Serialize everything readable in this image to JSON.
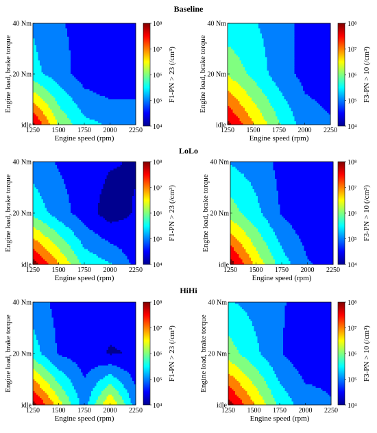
{
  "sections": [
    {
      "title": "Baseline"
    },
    {
      "title": "LoLo"
    },
    {
      "title": "HiHi"
    }
  ],
  "colors": {
    "colormap": [
      "#00008f",
      "#0000ff",
      "#0080ff",
      "#00ffff",
      "#80ff80",
      "#ffff00",
      "#ff8000",
      "#ff0000",
      "#800000"
    ]
  },
  "chart_data": [
    {
      "type": "heatmap",
      "section": "Baseline",
      "x": [
        1250,
        1500,
        1750,
        2000,
        2250
      ],
      "y": [
        "idle",
        "20 Nm",
        "40 Nm"
      ],
      "x_ticks": [
        "1250",
        "1500",
        "1750",
        "2000",
        "2250"
      ],
      "y_ticks": [
        "idle",
        "20 Nm",
        "40 Nm"
      ],
      "xlabel": "Engine speed (rpm)",
      "ylabel": "Engine load, brake torque",
      "colorbar_label": "F1-PN > 23 (/cm³)",
      "colorbar_ticks": [
        "10⁴",
        "10⁵",
        "10⁶",
        "10⁷",
        "10⁸"
      ],
      "colorbar_range_log10": [
        4,
        8
      ],
      "z_scale": "log10",
      "z_log10": [
        [
          7.9,
          6.2,
          5.4,
          5.2,
          5.2
        ],
        [
          5.4,
          5.0,
          4.5,
          4.3,
          4.3
        ],
        [
          5.2,
          4.8,
          4.6,
          4.4,
          4.4
        ]
      ]
    },
    {
      "type": "heatmap",
      "section": "Baseline",
      "x": [
        1250,
        1500,
        1750,
        2000,
        2250
      ],
      "y": [
        "idle",
        "20 Nm",
        "40 Nm"
      ],
      "x_ticks": [
        "1250",
        "1500",
        "1750",
        "2000",
        "2250"
      ],
      "y_ticks": [
        "idle",
        "20 Nm",
        "40 Nm"
      ],
      "xlabel": "Engine speed (rpm)",
      "ylabel": "Engine load, brake torque",
      "colorbar_label": "F3-PN > 10 (/cm³)",
      "colorbar_ticks": [
        "10⁴",
        "10⁵",
        "10⁶",
        "10⁷",
        "10⁸"
      ],
      "colorbar_range_log10": [
        4,
        8
      ],
      "z_scale": "log10",
      "z_log10": [
        [
          7.9,
          6.8,
          5.8,
          5.0,
          4.8
        ],
        [
          6.2,
          5.6,
          5.0,
          4.6,
          4.5
        ],
        [
          5.4,
          5.3,
          5.0,
          4.6,
          4.5
        ]
      ]
    },
    {
      "type": "heatmap",
      "section": "LoLo",
      "x": [
        1250,
        1500,
        1750,
        2000,
        2250
      ],
      "y": [
        "idle",
        "20 Nm",
        "40 Nm"
      ],
      "x_ticks": [
        "1250",
        "1500",
        "1750",
        "2000",
        "2250"
      ],
      "y_ticks": [
        "idle",
        "20 Nm",
        "40 Nm"
      ],
      "xlabel": "Engine speed (rpm)",
      "ylabel": "Engine load, brake torque",
      "colorbar_label": "F1-PN > 23 (/cm³)",
      "colorbar_ticks": [
        "10⁴",
        "10⁵",
        "10⁶",
        "10⁷",
        "10⁸"
      ],
      "colorbar_range_log10": [
        4,
        8
      ],
      "z_scale": "log10",
      "z_log10": [
        [
          8.0,
          6.8,
          5.6,
          5.3,
          4.6
        ],
        [
          5.6,
          5.0,
          4.5,
          4.0,
          4.3
        ],
        [
          5.0,
          4.7,
          4.5,
          4.3,
          4.2
        ]
      ]
    },
    {
      "type": "heatmap",
      "section": "LoLo",
      "x": [
        1250,
        1500,
        1750,
        2000,
        2250
      ],
      "y": [
        "idle",
        "20 Nm",
        "40 Nm"
      ],
      "x_ticks": [
        "1250",
        "1500",
        "1750",
        "2000",
        "2250"
      ],
      "y_ticks": [
        "idle",
        "20 Nm",
        "40 Nm"
      ],
      "xlabel": "Engine speed (rpm)",
      "ylabel": "Engine load, brake torque",
      "colorbar_label": "F3-PN > 10 (/cm³)",
      "colorbar_ticks": [
        "10⁴",
        "10⁵",
        "10⁶",
        "10⁷",
        "10⁸"
      ],
      "colorbar_range_log10": [
        4,
        8
      ],
      "z_scale": "log10",
      "z_log10": [
        [
          8.0,
          6.6,
          5.5,
          4.8,
          4.6
        ],
        [
          6.0,
          5.4,
          4.7,
          4.4,
          4.4
        ],
        [
          5.2,
          5.0,
          4.6,
          4.4,
          4.3
        ]
      ]
    },
    {
      "type": "heatmap",
      "section": "HiHi",
      "x": [
        1250,
        1500,
        1750,
        2000,
        2250
      ],
      "y": [
        "idle",
        "20 Nm",
        "40 Nm"
      ],
      "x_ticks": [
        "1250",
        "1500",
        "1750",
        "2000",
        "2250"
      ],
      "y_ticks": [
        "idle",
        "20 Nm",
        "40 Nm"
      ],
      "xlabel": "Engine speed (rpm)",
      "ylabel": "Engine load, brake torque",
      "colorbar_label": "F1-PN > 23 (/cm³)",
      "colorbar_ticks": [
        "10⁴",
        "10⁵",
        "10⁶",
        "10⁷",
        "10⁸"
      ],
      "colorbar_range_log10": [
        4,
        8
      ],
      "z_scale": "log10",
      "z_log10": [
        [
          8.0,
          6.5,
          5.0,
          6.8,
          5.0
        ],
        [
          5.5,
          4.7,
          4.5,
          4.2,
          4.3
        ],
        [
          5.0,
          4.6,
          4.6,
          4.5,
          4.5
        ]
      ]
    },
    {
      "type": "heatmap",
      "section": "HiHi",
      "x": [
        1250,
        1500,
        1750,
        2000,
        2250
      ],
      "y": [
        "idle",
        "20 Nm",
        "40 Nm"
      ],
      "x_ticks": [
        "1250",
        "1500",
        "1750",
        "2000",
        "2250"
      ],
      "y_ticks": [
        "idle",
        "20 Nm",
        "40 Nm"
      ],
      "xlabel": "Engine speed (rpm)",
      "ylabel": "Engine load, brake torque",
      "colorbar_label": "F3-PN > 10 (/cm³)",
      "colorbar_ticks": [
        "10⁴",
        "10⁵",
        "10⁶",
        "10⁷",
        "10⁸"
      ],
      "colorbar_range_log10": [
        4,
        8
      ],
      "z_scale": "log10",
      "z_log10": [
        [
          8.0,
          6.8,
          5.6,
          5.0,
          4.8
        ],
        [
          6.0,
          5.4,
          4.8,
          4.4,
          4.5
        ],
        [
          5.3,
          5.1,
          4.8,
          4.6,
          4.6
        ]
      ]
    }
  ]
}
